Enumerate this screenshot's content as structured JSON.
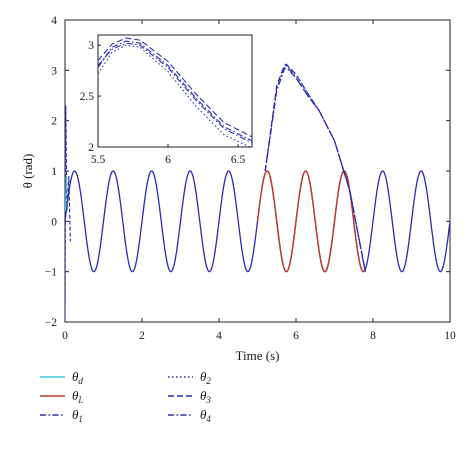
{
  "chart_data": [
    {
      "type": "line",
      "xlabel": "Time (s)",
      "ylabel": "θ (rad)",
      "xlim": [
        0,
        10
      ],
      "ylim": [
        -2,
        4
      ],
      "xticks": [
        "0",
        "2",
        "4",
        "6",
        "8",
        "10"
      ],
      "yticks": [
        "−2",
        "−1",
        "0",
        "1",
        "2",
        "3",
        "4"
      ],
      "grid": false,
      "legend_position": "below the plot, two columns",
      "series": [
        {
          "name": "θd",
          "color": "#3cc8d8",
          "style": "solid",
          "description_values": {
            "period": 1.0,
            "amplitude": 1.0,
            "t_range": [
              0,
              10
            ]
          }
        },
        {
          "name": "θL",
          "color": "#c0392b",
          "style": "solid",
          "x": [
            5.0,
            5.25,
            5.5,
            5.75,
            6.0,
            6.25,
            6.5,
            6.75,
            7.0,
            7.25,
            7.5,
            7.75
          ],
          "y": [
            0.0,
            1.0,
            0.0,
            -1.0,
            0.0,
            1.0,
            0.0,
            -1.0,
            0.0,
            1.0,
            0.0,
            -1.0
          ]
        },
        {
          "name": "θ1",
          "color": "#2b2bb0",
          "style": "dashdot",
          "x": [
            5.2,
            5.5,
            5.7,
            5.75,
            6.0,
            6.3,
            6.6,
            7.0,
            7.4,
            7.6,
            7.8
          ],
          "y": [
            1.0,
            2.6,
            3.05,
            3.1,
            2.85,
            2.5,
            2.2,
            1.6,
            0.6,
            -0.2,
            -1.0
          ]
        },
        {
          "name": "θ2",
          "color": "#2b2bb0",
          "style": "dotted",
          "x": [
            5.2,
            5.5,
            5.7,
            5.75,
            6.0,
            6.3,
            6.6,
            7.0,
            7.4,
            7.6,
            7.8
          ],
          "y": [
            1.0,
            2.65,
            3.08,
            3.1,
            2.9,
            2.55,
            2.2,
            1.6,
            0.6,
            -0.2,
            -1.0
          ]
        },
        {
          "name": "θ3",
          "color": "#2b2bb0",
          "style": "dashed",
          "x": [
            5.2,
            5.5,
            5.7,
            5.75,
            6.0,
            6.3,
            6.6,
            7.0,
            7.4,
            7.6,
            7.8
          ],
          "y": [
            1.0,
            2.7,
            3.1,
            3.12,
            2.92,
            2.55,
            2.2,
            1.6,
            0.6,
            -0.2,
            -1.0
          ]
        },
        {
          "name": "θ4",
          "color": "#2b2bb0",
          "style": "dashdot",
          "x": [
            5.2,
            5.5,
            5.7,
            5.75,
            6.0,
            6.3,
            6.6,
            7.0,
            7.4,
            7.6,
            7.8
          ],
          "y": [
            1.0,
            2.6,
            3.03,
            3.05,
            2.85,
            2.5,
            2.2,
            1.6,
            0.6,
            -0.2,
            -1.0
          ]
        }
      ]
    },
    {
      "type": "line",
      "role": "inset",
      "xlim": [
        5.5,
        6.6
      ],
      "ylim": [
        2,
        3.1
      ],
      "xticks": [
        "5.5",
        "6",
        "6.5"
      ],
      "yticks": [
        "2",
        "2.5",
        "3"
      ],
      "series": [
        {
          "name": "θ1",
          "x": [
            5.5,
            5.6,
            5.7,
            5.8,
            6.0,
            6.2,
            6.4,
            6.6
          ],
          "y": [
            2.8,
            2.96,
            3.02,
            3.0,
            2.78,
            2.46,
            2.18,
            2.04
          ]
        },
        {
          "name": "θ2",
          "x": [
            5.5,
            5.6,
            5.7,
            5.8,
            6.0,
            6.2,
            6.4,
            6.6
          ],
          "y": [
            2.72,
            2.93,
            3.0,
            2.98,
            2.74,
            2.4,
            2.12,
            1.99
          ]
        },
        {
          "name": "θ3",
          "x": [
            5.5,
            5.6,
            5.7,
            5.8,
            6.0,
            6.2,
            6.4,
            6.6
          ],
          "y": [
            2.85,
            3.01,
            3.07,
            3.05,
            2.84,
            2.52,
            2.24,
            2.1
          ]
        },
        {
          "name": "θ4",
          "x": [
            5.5,
            5.6,
            5.7,
            5.8,
            6.0,
            6.2,
            6.4,
            6.6
          ],
          "y": [
            2.78,
            2.98,
            3.04,
            3.02,
            2.8,
            2.48,
            2.2,
            2.06
          ]
        }
      ]
    }
  ],
  "legend": [
    {
      "base": "θ",
      "sub": "d",
      "color": "#3cc8d8",
      "style": "solid"
    },
    {
      "base": "θ",
      "sub": "L",
      "color": "#c0392b",
      "style": "solid"
    },
    {
      "base": "θ",
      "sub": "1",
      "color": "#2b2bb0",
      "style": "dashdot"
    },
    {
      "base": "θ",
      "sub": "2",
      "color": "#2b2bb0",
      "style": "dotted"
    },
    {
      "base": "θ",
      "sub": "3",
      "color": "#2b2bb0",
      "style": "dashed"
    },
    {
      "base": "θ",
      "sub": "4",
      "color": "#2b2bb0",
      "style": "dashdot"
    }
  ]
}
